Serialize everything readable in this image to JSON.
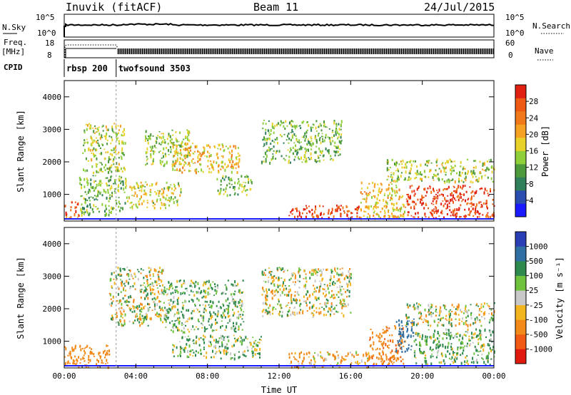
{
  "header": {
    "station": "Inuvik (fitACF)",
    "beam": "Beam 11",
    "date": "24/Jul/2015"
  },
  "small_panels": {
    "nsky_label": "N.Sky",
    "nsearch_label": "N.Search",
    "freq_label_line1": "Freq.",
    "freq_label_line2": "[MHz]",
    "nave_label": "Nave",
    "cpid_label": "CPID",
    "nsky_ticks": [
      "10^5",
      "10^0"
    ],
    "nsearch_ticks": [
      "10^5",
      "10^0"
    ],
    "freq_ticks": [
      "18",
      "8"
    ],
    "nave_ticks": [
      "60",
      "0"
    ],
    "programs": [
      {
        "name": "rbsp 200",
        "start_hour": 0.0,
        "end_hour": 2.9
      },
      {
        "name": "twofsound 3503",
        "start_hour": 2.9,
        "end_hour": 24.0
      }
    ]
  },
  "chart_data": [
    {
      "type": "heatmap",
      "title": "",
      "xlabel": "Time UT",
      "ylabel": "Slant Range [km]",
      "xticks": [
        "00:00",
        "04:00",
        "08:00",
        "12:00",
        "16:00",
        "20:00",
        "00:00"
      ],
      "xlim_hours": [
        0,
        24
      ],
      "yticks": [
        "1000",
        "2000",
        "3000",
        "4000"
      ],
      "ylim_km": [
        180,
        4500
      ],
      "colorbar": {
        "label": "Power [dB]",
        "ticks": [
          "4",
          "8",
          "12",
          "16",
          "20",
          "24",
          "28"
        ],
        "range": [
          0,
          30
        ],
        "colors": [
          "#1a1aff",
          "#2a4db0",
          "#2f7f5a",
          "#4c9a3c",
          "#8fcf3a",
          "#e8d22a",
          "#f5a223",
          "#f07a1a",
          "#ee5a14",
          "#e02010"
        ]
      },
      "patches": [
        {
          "t0": 0.0,
          "t1": 0.8,
          "r0": 300,
          "r1": 800,
          "value": 24
        },
        {
          "t0": 0.8,
          "t1": 3.5,
          "r0": 400,
          "r1": 1600,
          "value": 12
        },
        {
          "t0": 1.0,
          "t1": 3.4,
          "r0": 1700,
          "r1": 3200,
          "value": 14
        },
        {
          "t0": 3.5,
          "t1": 6.5,
          "r0": 600,
          "r1": 1400,
          "value": 16
        },
        {
          "t0": 4.5,
          "t1": 7.0,
          "r0": 1900,
          "r1": 3000,
          "value": 14
        },
        {
          "t0": 6.0,
          "t1": 9.8,
          "r0": 1700,
          "r1": 2600,
          "value": 18
        },
        {
          "t0": 8.5,
          "t1": 10.5,
          "r0": 1000,
          "r1": 1600,
          "value": 12
        },
        {
          "t0": 11.0,
          "t1": 15.5,
          "r0": 2000,
          "r1": 3300,
          "value": 12
        },
        {
          "t0": 12.5,
          "t1": 16.5,
          "r0": 280,
          "r1": 700,
          "value": 27
        },
        {
          "t0": 16.5,
          "t1": 19.0,
          "r0": 280,
          "r1": 1400,
          "value": 18
        },
        {
          "t0": 19.0,
          "t1": 24.0,
          "r0": 300,
          "r1": 1300,
          "value": 27
        },
        {
          "t0": 18.0,
          "t1": 24.0,
          "r0": 1400,
          "r1": 2100,
          "value": 14
        }
      ]
    },
    {
      "type": "heatmap",
      "title": "",
      "xlabel": "Time UT",
      "ylabel": "Slant Range [km]",
      "xticks": [
        "00:00",
        "04:00",
        "08:00",
        "12:00",
        "16:00",
        "20:00",
        "00:00"
      ],
      "xlim_hours": [
        0,
        24
      ],
      "yticks": [
        "1000",
        "2000",
        "3000",
        "4000"
      ],
      "ylim_km": [
        180,
        4500
      ],
      "colorbar": {
        "label": "Velocity [m s⁻¹]",
        "ticks": [
          "1000",
          "500",
          "100",
          "25",
          "-25",
          "-100",
          "-500",
          "-1000"
        ],
        "colors": [
          "#2b3fb5",
          "#2f6fa3",
          "#2f8a4d",
          "#6fc23b",
          "#c8c8c8",
          "#f2b51e",
          "#f28a1a",
          "#f05a14",
          "#e01a0e"
        ]
      },
      "patches": [
        {
          "t0": 0.0,
          "t1": 2.5,
          "r0": 200,
          "r1": 900,
          "value": -300
        },
        {
          "t0": 2.5,
          "t1": 5.5,
          "r0": 1500,
          "r1": 3300,
          "value": 0
        },
        {
          "t0": 5.5,
          "t1": 10.0,
          "r0": 1300,
          "r1": 2900,
          "value": 120
        },
        {
          "t0": 6.0,
          "t1": 11.0,
          "r0": 500,
          "r1": 1200,
          "value": 80
        },
        {
          "t0": 11.0,
          "t1": 16.0,
          "r0": 1800,
          "r1": 3300,
          "value": 0
        },
        {
          "t0": 12.5,
          "t1": 17.0,
          "r0": 220,
          "r1": 700,
          "value": -120
        },
        {
          "t0": 17.0,
          "t1": 19.0,
          "r0": 300,
          "r1": 1500,
          "value": -400
        },
        {
          "t0": 18.5,
          "t1": 19.5,
          "r0": 700,
          "r1": 1700,
          "value": 700
        },
        {
          "t0": 19.5,
          "t1": 24.0,
          "r0": 300,
          "r1": 1400,
          "value": 120
        },
        {
          "t0": 19.0,
          "t1": 24.0,
          "r0": 1500,
          "r1": 2200,
          "value": 0
        }
      ]
    }
  ]
}
